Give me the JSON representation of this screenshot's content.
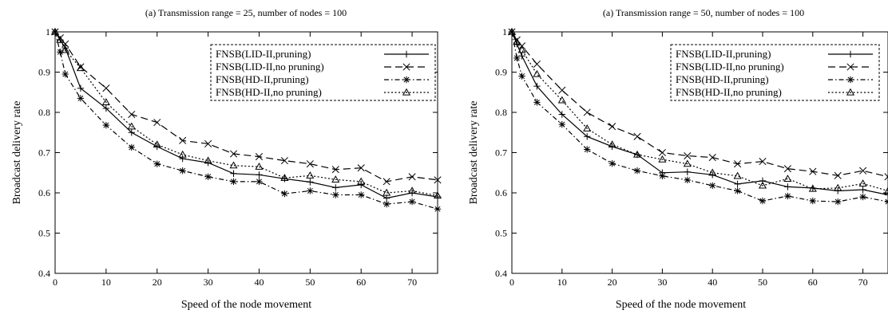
{
  "chart_data": [
    {
      "type": "line",
      "title": "(a) Transmission range = 25, number of nodes = 100",
      "xlabel": "Speed of the node movement",
      "ylabel": "Broadcast delivery rate",
      "xlim": [
        0,
        75
      ],
      "ylim": [
        0.4,
        1.0
      ],
      "xticks": [
        "0",
        "10",
        "20",
        "30",
        "40",
        "50",
        "60",
        "70"
      ],
      "yticks": [
        "0.4",
        "0.5",
        "0.6",
        "0.7",
        "0.8",
        "0.9",
        "1"
      ],
      "legend_position": "top-right",
      "x": [
        0,
        1,
        2,
        5,
        10,
        15,
        20,
        25,
        30,
        35,
        40,
        45,
        50,
        55,
        60,
        65,
        70,
        75
      ],
      "series": [
        {
          "name": "FNSB(LID-II,pruning)",
          "marker": "plus",
          "dash": "solid",
          "values": [
            1.0,
            0.98,
            0.96,
            0.86,
            0.81,
            0.75,
            0.715,
            0.685,
            0.675,
            0.648,
            0.645,
            0.635,
            0.627,
            0.613,
            0.62,
            0.587,
            0.6,
            0.59
          ]
        },
        {
          "name": "FNSB(LID-II,no pruning)",
          "marker": "x",
          "dash": "long",
          "values": [
            1.0,
            0.985,
            0.97,
            0.913,
            0.86,
            0.795,
            0.775,
            0.73,
            0.722,
            0.697,
            0.69,
            0.68,
            0.672,
            0.658,
            0.662,
            0.628,
            0.64,
            0.632
          ]
        },
        {
          "name": "FNSB(HD-II,pruning)",
          "marker": "star",
          "dash": "dashdot",
          "values": [
            1.0,
            0.95,
            0.895,
            0.835,
            0.768,
            0.713,
            0.672,
            0.655,
            0.64,
            0.628,
            0.628,
            0.598,
            0.605,
            0.595,
            0.595,
            0.572,
            0.578,
            0.56
          ]
        },
        {
          "name": "FNSB(HD-II,no pruning)",
          "marker": "triangle",
          "dash": "dotted",
          "values": [
            1.0,
            0.98,
            0.955,
            0.91,
            0.825,
            0.765,
            0.72,
            0.695,
            0.68,
            0.668,
            0.665,
            0.637,
            0.643,
            0.633,
            0.628,
            0.6,
            0.605,
            0.593
          ]
        }
      ]
    },
    {
      "type": "line",
      "title": "(a) Transmission range = 50, number of nodes = 100",
      "xlabel": "Speed of the node movement",
      "ylabel": "Broadcast delivery rate",
      "xlim": [
        0,
        75
      ],
      "ylim": [
        0.4,
        1.0
      ],
      "xticks": [
        "0",
        "10",
        "20",
        "30",
        "40",
        "50",
        "60",
        "70"
      ],
      "yticks": [
        "0.4",
        "0.5",
        "0.6",
        "0.7",
        "0.8",
        "0.9",
        "1"
      ],
      "legend_position": "top-right",
      "x": [
        0,
        1,
        2,
        5,
        10,
        15,
        20,
        25,
        30,
        35,
        40,
        45,
        50,
        55,
        60,
        65,
        70,
        75
      ],
      "series": [
        {
          "name": "FNSB(LID-II,pruning)",
          "marker": "plus",
          "dash": "solid",
          "values": [
            1.0,
            0.97,
            0.94,
            0.865,
            0.795,
            0.74,
            0.715,
            0.695,
            0.65,
            0.652,
            0.645,
            0.622,
            0.63,
            0.615,
            0.612,
            0.605,
            0.608,
            0.595
          ]
        },
        {
          "name": "FNSB(LID-II,no pruning)",
          "marker": "x",
          "dash": "long",
          "values": [
            1.0,
            0.98,
            0.965,
            0.92,
            0.855,
            0.8,
            0.765,
            0.74,
            0.7,
            0.692,
            0.688,
            0.672,
            0.678,
            0.66,
            0.653,
            0.643,
            0.655,
            0.64
          ]
        },
        {
          "name": "FNSB(HD-II,pruning)",
          "marker": "star",
          "dash": "dashdot",
          "values": [
            1.0,
            0.935,
            0.89,
            0.825,
            0.77,
            0.708,
            0.673,
            0.655,
            0.642,
            0.632,
            0.618,
            0.605,
            0.58,
            0.592,
            0.58,
            0.578,
            0.59,
            0.578
          ]
        },
        {
          "name": "FNSB(HD-II,no pruning)",
          "marker": "triangle",
          "dash": "dotted",
          "values": [
            1.0,
            0.975,
            0.955,
            0.895,
            0.83,
            0.76,
            0.72,
            0.695,
            0.683,
            0.672,
            0.65,
            0.642,
            0.618,
            0.635,
            0.61,
            0.612,
            0.623,
            0.605
          ]
        }
      ]
    }
  ]
}
